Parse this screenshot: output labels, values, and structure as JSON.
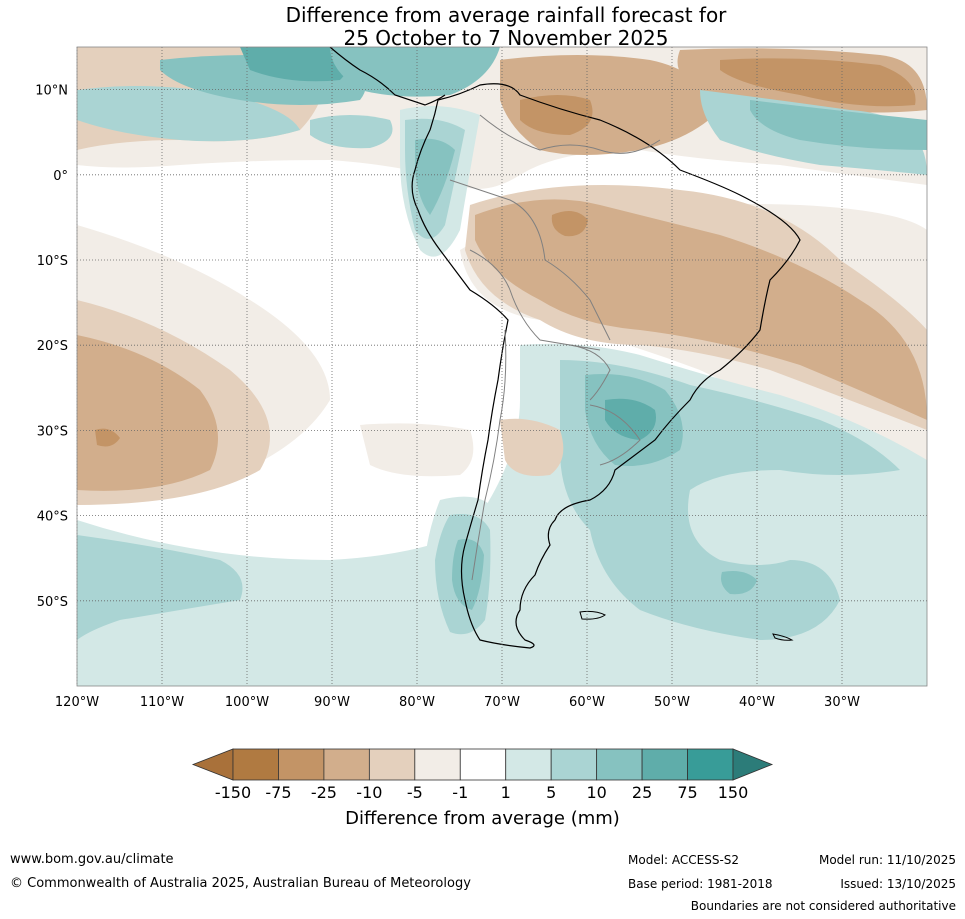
{
  "title": {
    "line1": "Difference from average rainfall forecast for",
    "line2": "25 October to 7 November 2025"
  },
  "map": {
    "lon_range": [
      -120,
      -20
    ],
    "lat_range": [
      -60,
      15
    ],
    "lat_ticks": [
      {
        "value": 10,
        "label": "10°N"
      },
      {
        "value": 0,
        "label": "0°"
      },
      {
        "value": -10,
        "label": "10°S"
      },
      {
        "value": -20,
        "label": "20°S"
      },
      {
        "value": -30,
        "label": "30°S"
      },
      {
        "value": -40,
        "label": "40°S"
      },
      {
        "value": -50,
        "label": "50°S"
      }
    ],
    "lon_ticks": [
      {
        "value": -120,
        "label": "120°W"
      },
      {
        "value": -110,
        "label": "110°W"
      },
      {
        "value": -100,
        "label": "100°W"
      },
      {
        "value": -90,
        "label": "90°W"
      },
      {
        "value": -80,
        "label": "80°W"
      },
      {
        "value": -70,
        "label": "70°W"
      },
      {
        "value": -60,
        "label": "60°W"
      },
      {
        "value": -50,
        "label": "50°W"
      },
      {
        "value": -40,
        "label": "40°W"
      },
      {
        "value": -30,
        "label": "30°W"
      }
    ]
  },
  "colorbar": {
    "title": "Difference from average (mm)",
    "bins": [
      {
        "color": "#a9713a"
      },
      {
        "color": "#b07a41"
      },
      {
        "color": "#c39466"
      },
      {
        "color": "#d2ae8c"
      },
      {
        "color": "#e4d0bd"
      },
      {
        "color": "#f2ede7"
      },
      {
        "color": "#ffffff"
      },
      {
        "color": "#d3e8e6"
      },
      {
        "color": "#aad4d3"
      },
      {
        "color": "#86c2c0"
      },
      {
        "color": "#5fadaa"
      },
      {
        "color": "#389c98"
      },
      {
        "color": "#2c7c79"
      }
    ],
    "labels": [
      "-150",
      "-75",
      "-25",
      "-10",
      "-5",
      "-1",
      "1",
      "5",
      "10",
      "25",
      "75",
      "150"
    ]
  },
  "footer": {
    "website": "www.bom.gov.au/climate",
    "copyright": "© Commonwealth of Australia 2025, Australian Bureau of Meteorology",
    "model": "Model: ACCESS-S2",
    "base_period": "Base period: 1981-2018",
    "model_run": "Model run: 11/10/2025",
    "issued": "Issued: 13/10/2025",
    "disclaimer": "Boundaries are not considered authoritative"
  },
  "regions": [
    {
      "category": "-10",
      "color": "#d2ae8c",
      "area": "northern Brazil"
    },
    {
      "category": "-10",
      "color": "#d2ae8c",
      "area": "eastern Brazil and adjacent Atlantic"
    },
    {
      "category": "-10",
      "color": "#d2ae8c",
      "area": "southeast Pacific near 30°S 110°W"
    },
    {
      "category": "-25",
      "color": "#c39466",
      "area": "Caribbean / equatorial Atlantic"
    },
    {
      "category": "5",
      "color": "#d3e8e6",
      "area": "Southern Ocean and South Atlantic"
    },
    {
      "category": "10",
      "color": "#aad4d3",
      "area": "Colombia / Ecuador coast"
    },
    {
      "category": "25",
      "color": "#86c2c0",
      "area": "southern Brazil / Uruguay"
    },
    {
      "category": "10",
      "color": "#aad4d3",
      "area": "southern Chile"
    }
  ]
}
